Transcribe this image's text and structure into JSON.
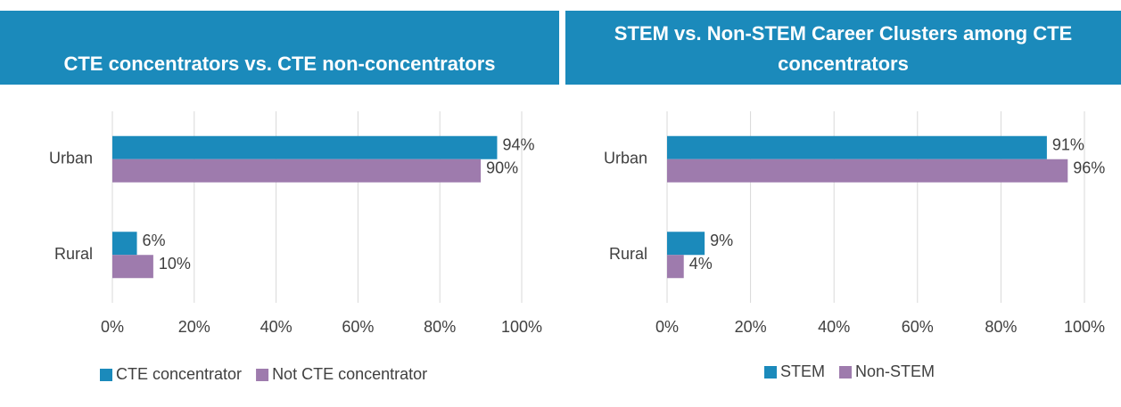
{
  "chart_data": [
    {
      "type": "bar",
      "orientation": "horizontal",
      "title": "CTE concentrators vs. CTE non-concentrators",
      "categories": [
        "Urban",
        "Rural"
      ],
      "series": [
        {
          "name": "CTE concentrator",
          "color": "#1b8abb",
          "values": [
            94,
            6
          ],
          "value_labels": [
            "94%",
            "6%"
          ]
        },
        {
          "name": "Not CTE concentrator",
          "color": "#9e7bad",
          "values": [
            90,
            10
          ],
          "value_labels": [
            "90%",
            "10%"
          ]
        }
      ],
      "xlim": [
        0,
        100
      ],
      "xticks": [
        {
          "value": 0,
          "label": "0%"
        },
        {
          "value": 20,
          "label": "20%"
        },
        {
          "value": 40,
          "label": "40%"
        },
        {
          "value": 60,
          "label": "60%"
        },
        {
          "value": 80,
          "label": "80%"
        },
        {
          "value": 100,
          "label": "100%"
        }
      ],
      "grid": true,
      "legend": "bottom"
    },
    {
      "type": "bar",
      "orientation": "horizontal",
      "title": "STEM vs. Non-STEM Career Clusters among CTE concentrators",
      "categories": [
        "Urban",
        "Rural"
      ],
      "series": [
        {
          "name": "STEM",
          "color": "#1b8abb",
          "values": [
            91,
            9
          ],
          "value_labels": [
            "91%",
            "9%"
          ]
        },
        {
          "name": "Non-STEM",
          "color": "#9e7bad",
          "values": [
            96,
            4
          ],
          "value_labels": [
            "96%",
            "4%"
          ]
        }
      ],
      "xlim": [
        0,
        100
      ],
      "xticks": [
        {
          "value": 0,
          "label": "0%"
        },
        {
          "value": 20,
          "label": "20%"
        },
        {
          "value": 40,
          "label": "40%"
        },
        {
          "value": 60,
          "label": "60%"
        },
        {
          "value": 80,
          "label": "80%"
        },
        {
          "value": 100,
          "label": "100%"
        }
      ],
      "grid": true,
      "legend": "bottom"
    }
  ]
}
